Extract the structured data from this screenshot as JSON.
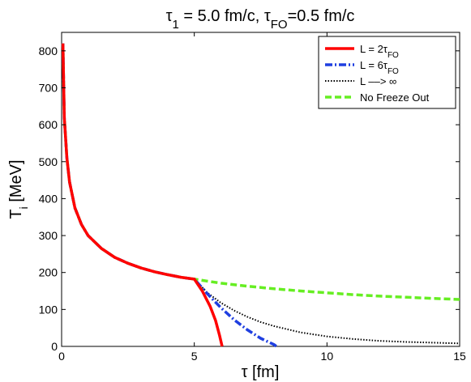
{
  "chart_data": {
    "type": "line",
    "title": {
      "parts": [
        {
          "text": "τ",
          "style": "normal"
        },
        {
          "text": "1",
          "style": "sub"
        },
        {
          "text": " = 5.0 fm/c, ",
          "style": "normal"
        },
        {
          "text": "τ",
          "style": "normal"
        },
        {
          "text": "FO",
          "style": "sub"
        },
        {
          "text": "=0.5 fm/c",
          "style": "normal"
        }
      ]
    },
    "xlabel": "τ [fm]",
    "ylabel": {
      "main": "T",
      "sub": "i",
      "rest": " [MeV]"
    },
    "xlim": [
      0,
      15
    ],
    "ylim": [
      0,
      850
    ],
    "xticks": [
      0,
      5,
      10,
      15
    ],
    "yticks": [
      0,
      100,
      200,
      300,
      400,
      500,
      600,
      700,
      800
    ],
    "grid": false,
    "legend_position": "top-right",
    "legend": [
      {
        "parts": [
          {
            "text": "L = 2τ",
            "style": "normal"
          },
          {
            "text": "FO",
            "style": "sub"
          }
        ],
        "color": "#ff0000",
        "dash": "solid"
      },
      {
        "parts": [
          {
            "text": "L = 6τ",
            "style": "normal"
          },
          {
            "text": "FO",
            "style": "sub"
          }
        ],
        "color": "#1f3fe0",
        "dash": "dashdot"
      },
      {
        "parts": [
          {
            "text": "L ––> ∞",
            "style": "normal"
          }
        ],
        "color": "#000000",
        "dash": "dotted"
      },
      {
        "parts": [
          {
            "text": "No Freeze Out",
            "style": "normal"
          }
        ],
        "color": "#66ee22",
        "dash": "dashed"
      }
    ],
    "series": [
      {
        "color": "#66ee22",
        "dash": "dashed",
        "x": [
          0.05,
          0.1,
          0.2,
          0.3,
          0.5,
          0.75,
          1.0,
          1.5,
          2.0,
          2.5,
          3.0,
          3.5,
          4.0,
          4.5,
          5.0,
          6.0,
          7.0,
          8.0,
          9.0,
          10.0,
          11.0,
          12.0,
          13.0,
          14.0,
          15.0
        ],
        "y": [
          820,
          620,
          510,
          445,
          375,
          330,
          300,
          265,
          241,
          225,
          212,
          202,
          194,
          187,
          182,
          171,
          163,
          156,
          150,
          145,
          140,
          136,
          133,
          130,
          127
        ]
      },
      {
        "color": "#000000",
        "dash": "dotted",
        "x": [
          5.0,
          5.5,
          6.0,
          6.5,
          7.0,
          7.5,
          8.0,
          9.0,
          10.0,
          11.0,
          12.0,
          13.0,
          14.0,
          15.0
        ],
        "y": [
          182,
          145,
          118,
          97,
          80,
          66,
          55,
          38,
          27,
          20,
          15,
          12,
          10,
          8
        ]
      },
      {
        "color": "#1f3fe0",
        "dash": "dashdot",
        "x": [
          0.05,
          0.1,
          0.2,
          0.3,
          0.5,
          0.75,
          1.0,
          1.5,
          2.0,
          2.5,
          3.0,
          3.5,
          4.0,
          4.5,
          5.0,
          5.5,
          6.0,
          6.5,
          7.0,
          7.5,
          8.0,
          8.1
        ],
        "y": [
          820,
          620,
          510,
          445,
          375,
          330,
          300,
          265,
          241,
          225,
          212,
          202,
          194,
          187,
          182,
          142,
          105,
          72,
          45,
          22,
          5,
          0
        ]
      },
      {
        "color": "#ff0000",
        "dash": "solid",
        "x": [
          0.05,
          0.1,
          0.2,
          0.3,
          0.5,
          0.75,
          1.0,
          1.5,
          2.0,
          2.5,
          3.0,
          3.5,
          4.0,
          4.5,
          5.0,
          5.3,
          5.6,
          5.8,
          5.95,
          6.05
        ],
        "y": [
          820,
          620,
          510,
          445,
          375,
          330,
          300,
          265,
          241,
          225,
          212,
          202,
          194,
          187,
          182,
          150,
          108,
          70,
          30,
          0
        ]
      }
    ]
  }
}
